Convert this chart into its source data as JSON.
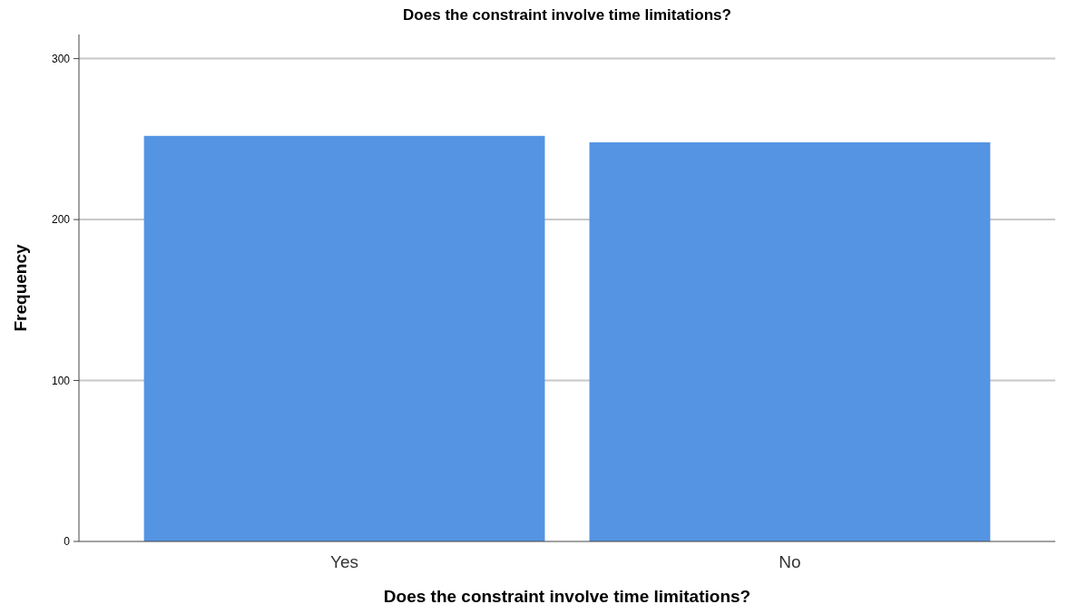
{
  "chart_data": {
    "type": "bar",
    "title": "Does the constraint involve time limitations?",
    "xlabel": "Does the constraint involve time limitations?",
    "ylabel": "Frequency",
    "categories": [
      "Yes",
      "No"
    ],
    "values": [
      252,
      248
    ],
    "color": "#5594e3",
    "ylim": [
      0,
      315
    ],
    "yticks": [
      0,
      100,
      200,
      300
    ],
    "grid": "y"
  }
}
